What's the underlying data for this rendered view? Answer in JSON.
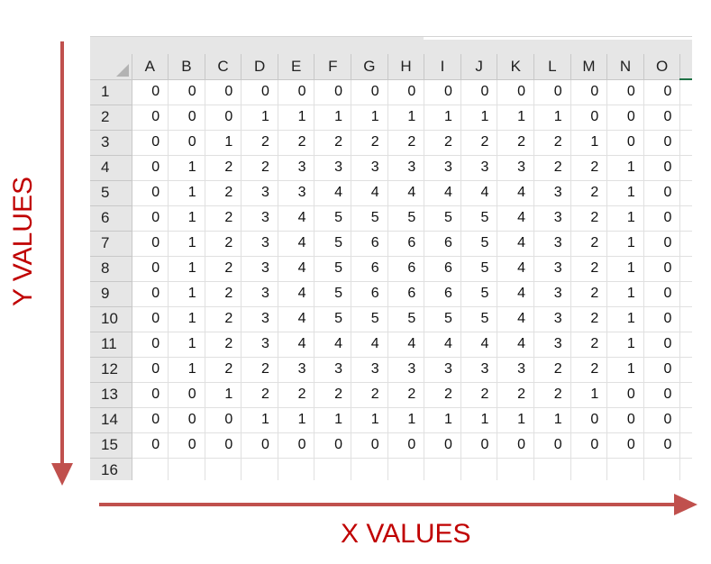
{
  "spreadsheet": {
    "columns": [
      "A",
      "B",
      "C",
      "D",
      "E",
      "F",
      "G",
      "H",
      "I",
      "J",
      "K",
      "L",
      "M",
      "N",
      "O"
    ],
    "row_numbers": [
      "1",
      "2",
      "3",
      "4",
      "5",
      "6",
      "7",
      "8",
      "9",
      "10",
      "11",
      "12",
      "13",
      "14",
      "15",
      "16"
    ],
    "rows": [
      [
        0,
        0,
        0,
        0,
        0,
        0,
        0,
        0,
        0,
        0,
        0,
        0,
        0,
        0,
        0
      ],
      [
        0,
        0,
        0,
        1,
        1,
        1,
        1,
        1,
        1,
        1,
        1,
        1,
        0,
        0,
        0
      ],
      [
        0,
        0,
        1,
        2,
        2,
        2,
        2,
        2,
        2,
        2,
        2,
        2,
        1,
        0,
        0
      ],
      [
        0,
        1,
        2,
        2,
        3,
        3,
        3,
        3,
        3,
        3,
        3,
        2,
        2,
        1,
        0
      ],
      [
        0,
        1,
        2,
        3,
        3,
        4,
        4,
        4,
        4,
        4,
        4,
        3,
        2,
        1,
        0
      ],
      [
        0,
        1,
        2,
        3,
        4,
        5,
        5,
        5,
        5,
        5,
        4,
        3,
        2,
        1,
        0
      ],
      [
        0,
        1,
        2,
        3,
        4,
        5,
        6,
        6,
        6,
        5,
        4,
        3,
        2,
        1,
        0
      ],
      [
        0,
        1,
        2,
        3,
        4,
        5,
        6,
        6,
        6,
        5,
        4,
        3,
        2,
        1,
        0
      ],
      [
        0,
        1,
        2,
        3,
        4,
        5,
        6,
        6,
        6,
        5,
        4,
        3,
        2,
        1,
        0
      ],
      [
        0,
        1,
        2,
        3,
        4,
        5,
        5,
        5,
        5,
        5,
        4,
        3,
        2,
        1,
        0
      ],
      [
        0,
        1,
        2,
        3,
        4,
        4,
        4,
        4,
        4,
        4,
        4,
        3,
        2,
        1,
        0
      ],
      [
        0,
        1,
        2,
        2,
        3,
        3,
        3,
        3,
        3,
        3,
        3,
        2,
        2,
        1,
        0
      ],
      [
        0,
        0,
        1,
        2,
        2,
        2,
        2,
        2,
        2,
        2,
        2,
        2,
        1,
        0,
        0
      ],
      [
        0,
        0,
        0,
        1,
        1,
        1,
        1,
        1,
        1,
        1,
        1,
        1,
        0,
        0,
        0
      ],
      [
        0,
        0,
        0,
        0,
        0,
        0,
        0,
        0,
        0,
        0,
        0,
        0,
        0,
        0,
        0
      ]
    ]
  },
  "annotations": {
    "y_label": "Y VALUES",
    "x_label": "X VALUES",
    "color": "#c00000"
  }
}
